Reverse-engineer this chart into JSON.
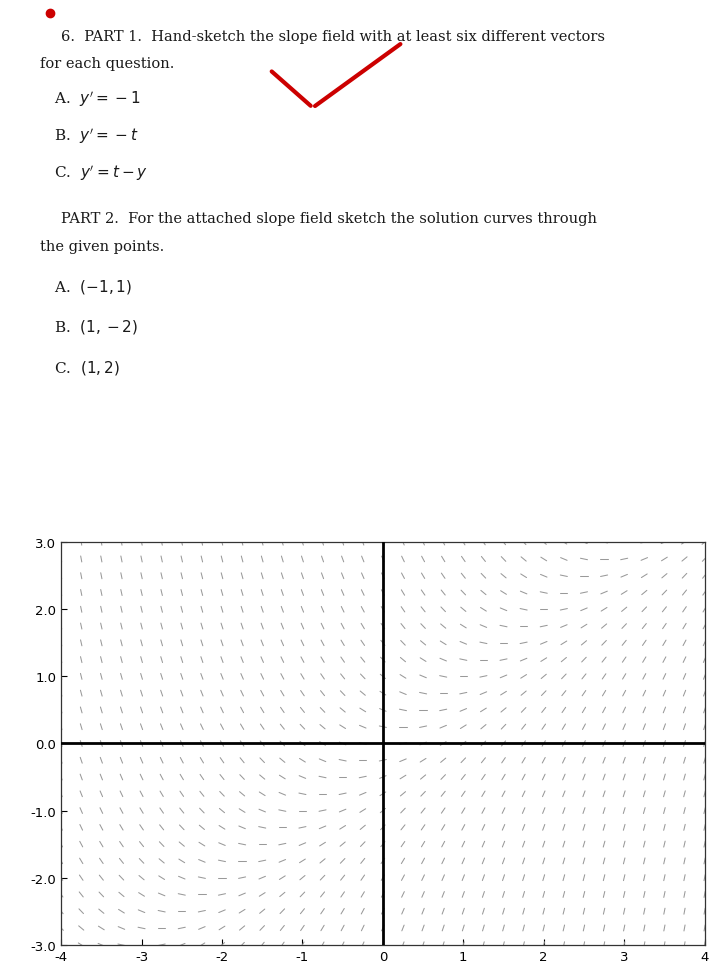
{
  "plot_xlim": [
    -4,
    4
  ],
  "plot_ylim": [
    -3,
    3
  ],
  "plot_xticks": [
    -4,
    -3,
    -2,
    -1,
    0,
    1,
    2,
    3,
    4
  ],
  "plot_yticks": [
    -3.0,
    -2.0,
    -1.0,
    0.0,
    1.0,
    2.0,
    3.0
  ],
  "arrow_color": "#999999",
  "axis_color": "#000000",
  "checkmark_color": "#cc0000",
  "background_color": "#ffffff",
  "text_color": "#1a1a1a",
  "n_cols": 33,
  "n_rows": 25,
  "vector_scale": 0.09,
  "vector_lw": 0.75,
  "red_dot_color": "#cc0000",
  "red_dot_size": 6
}
